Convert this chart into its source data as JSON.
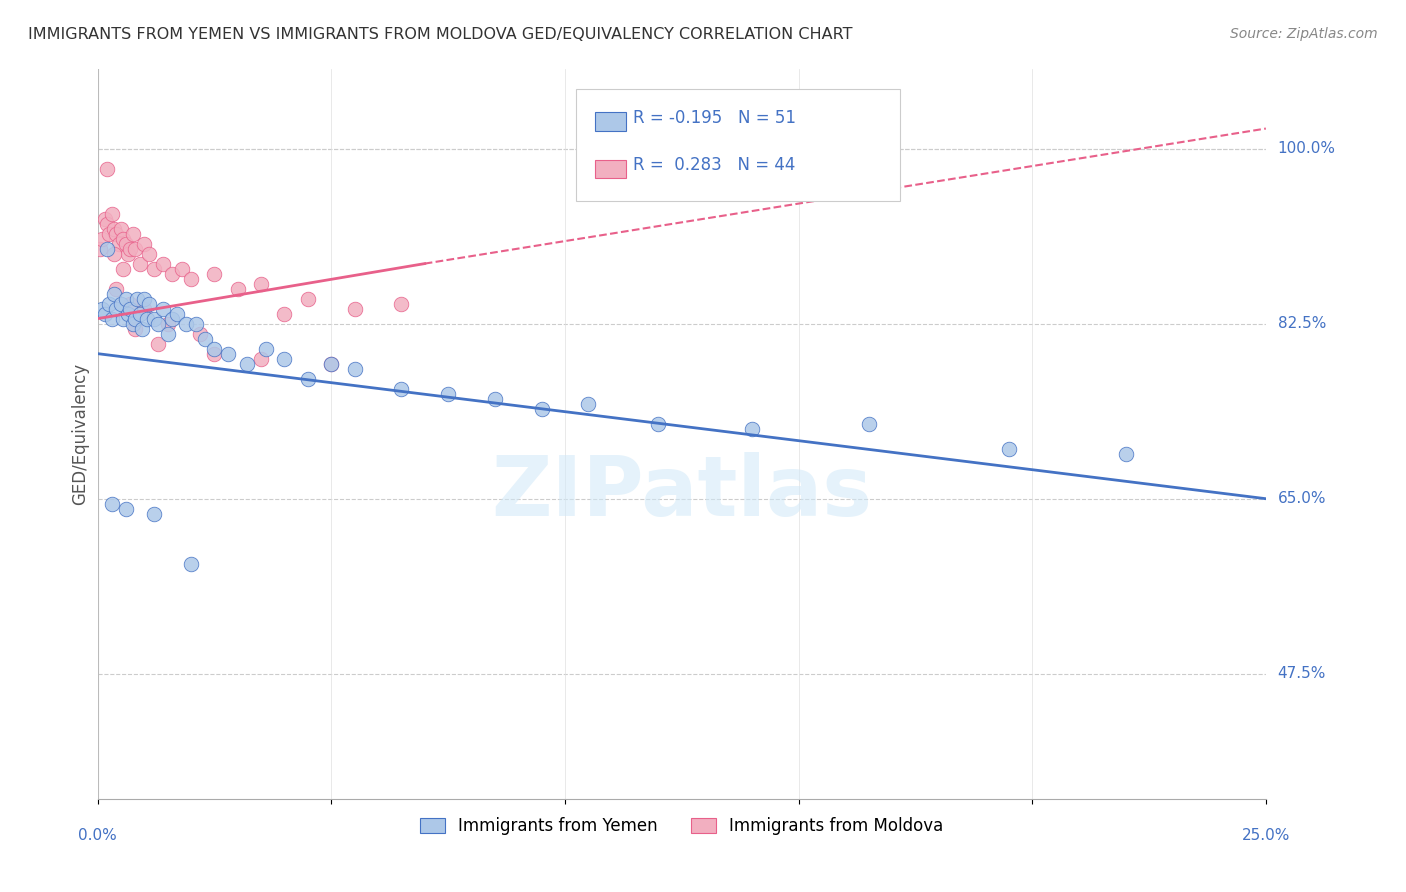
{
  "title": "IMMIGRANTS FROM YEMEN VS IMMIGRANTS FROM MOLDOVA GED/EQUIVALENCY CORRELATION CHART",
  "source": "Source: ZipAtlas.com",
  "ylabel": "GED/Equivalency",
  "ytick_values": [
    47.5,
    65.0,
    82.5,
    100.0
  ],
  "ytick_labels": [
    "47.5%",
    "65.0%",
    "82.5%",
    "100.0%"
  ],
  "xmin": 0.0,
  "xmax": 25.0,
  "ymin": 35.0,
  "ymax": 108.0,
  "legend_r_yemen": "-0.195",
  "legend_n_yemen": "51",
  "legend_r_moldova": "0.283",
  "legend_n_moldova": "44",
  "color_yemen": "#adc8e8",
  "color_moldova": "#f2afc0",
  "color_trendline_yemen": "#4472c4",
  "color_trendline_moldova": "#e8608a",
  "watermark": "ZIPatlas",
  "yemen_x": [
    0.1,
    0.15,
    0.2,
    0.25,
    0.3,
    0.35,
    0.4,
    0.5,
    0.55,
    0.6,
    0.65,
    0.7,
    0.75,
    0.8,
    0.85,
    0.9,
    0.95,
    1.0,
    1.05,
    1.1,
    1.2,
    1.3,
    1.4,
    1.5,
    1.6,
    1.7,
    1.9,
    2.1,
    2.3,
    2.5,
    2.8,
    3.2,
    3.6,
    4.0,
    4.5,
    5.0,
    5.5,
    6.5,
    7.5,
    8.5,
    9.5,
    10.5,
    12.0,
    14.0,
    16.5,
    19.5,
    22.0,
    0.3,
    0.6,
    1.2,
    2.0
  ],
  "yemen_y": [
    84.0,
    83.5,
    90.0,
    84.5,
    83.0,
    85.5,
    84.0,
    84.5,
    83.0,
    85.0,
    83.5,
    84.0,
    82.5,
    83.0,
    85.0,
    83.5,
    82.0,
    85.0,
    83.0,
    84.5,
    83.0,
    82.5,
    84.0,
    81.5,
    83.0,
    83.5,
    82.5,
    82.5,
    81.0,
    80.0,
    79.5,
    78.5,
    80.0,
    79.0,
    77.0,
    78.5,
    78.0,
    76.0,
    75.5,
    75.0,
    74.0,
    74.5,
    72.5,
    72.0,
    72.5,
    70.0,
    69.5,
    64.5,
    64.0,
    63.5,
    58.5
  ],
  "moldova_x": [
    0.05,
    0.1,
    0.15,
    0.2,
    0.25,
    0.3,
    0.35,
    0.4,
    0.45,
    0.5,
    0.55,
    0.6,
    0.65,
    0.7,
    0.75,
    0.8,
    0.9,
    1.0,
    1.1,
    1.2,
    1.4,
    1.6,
    1.8,
    2.0,
    2.5,
    3.0,
    3.5,
    4.5,
    5.5,
    6.5,
    0.2,
    0.4,
    0.7,
    1.0,
    1.5,
    2.5,
    3.5,
    5.0,
    0.35,
    0.55,
    0.8,
    1.3,
    2.2,
    4.0
  ],
  "moldova_y": [
    90.0,
    91.0,
    93.0,
    92.5,
    91.5,
    93.5,
    92.0,
    91.5,
    90.5,
    92.0,
    91.0,
    90.5,
    89.5,
    90.0,
    91.5,
    90.0,
    88.5,
    90.5,
    89.5,
    88.0,
    88.5,
    87.5,
    88.0,
    87.0,
    87.5,
    86.0,
    86.5,
    85.0,
    84.0,
    84.5,
    98.0,
    86.0,
    84.5,
    84.0,
    82.5,
    79.5,
    79.0,
    78.5,
    89.5,
    88.0,
    82.0,
    80.5,
    81.5,
    83.5
  ],
  "trendline_yemen_x0": 0.0,
  "trendline_yemen_y0": 79.5,
  "trendline_yemen_x1": 25.0,
  "trendline_yemen_y1": 65.0,
  "trendline_moldova_solid_x0": 0.0,
  "trendline_moldova_solid_y0": 83.0,
  "trendline_moldova_solid_x1": 7.0,
  "trendline_moldova_solid_y1": 88.5,
  "trendline_moldova_dash_x0": 7.0,
  "trendline_moldova_dash_y0": 88.5,
  "trendline_moldova_dash_x1": 25.0,
  "trendline_moldova_dash_y1": 102.0
}
